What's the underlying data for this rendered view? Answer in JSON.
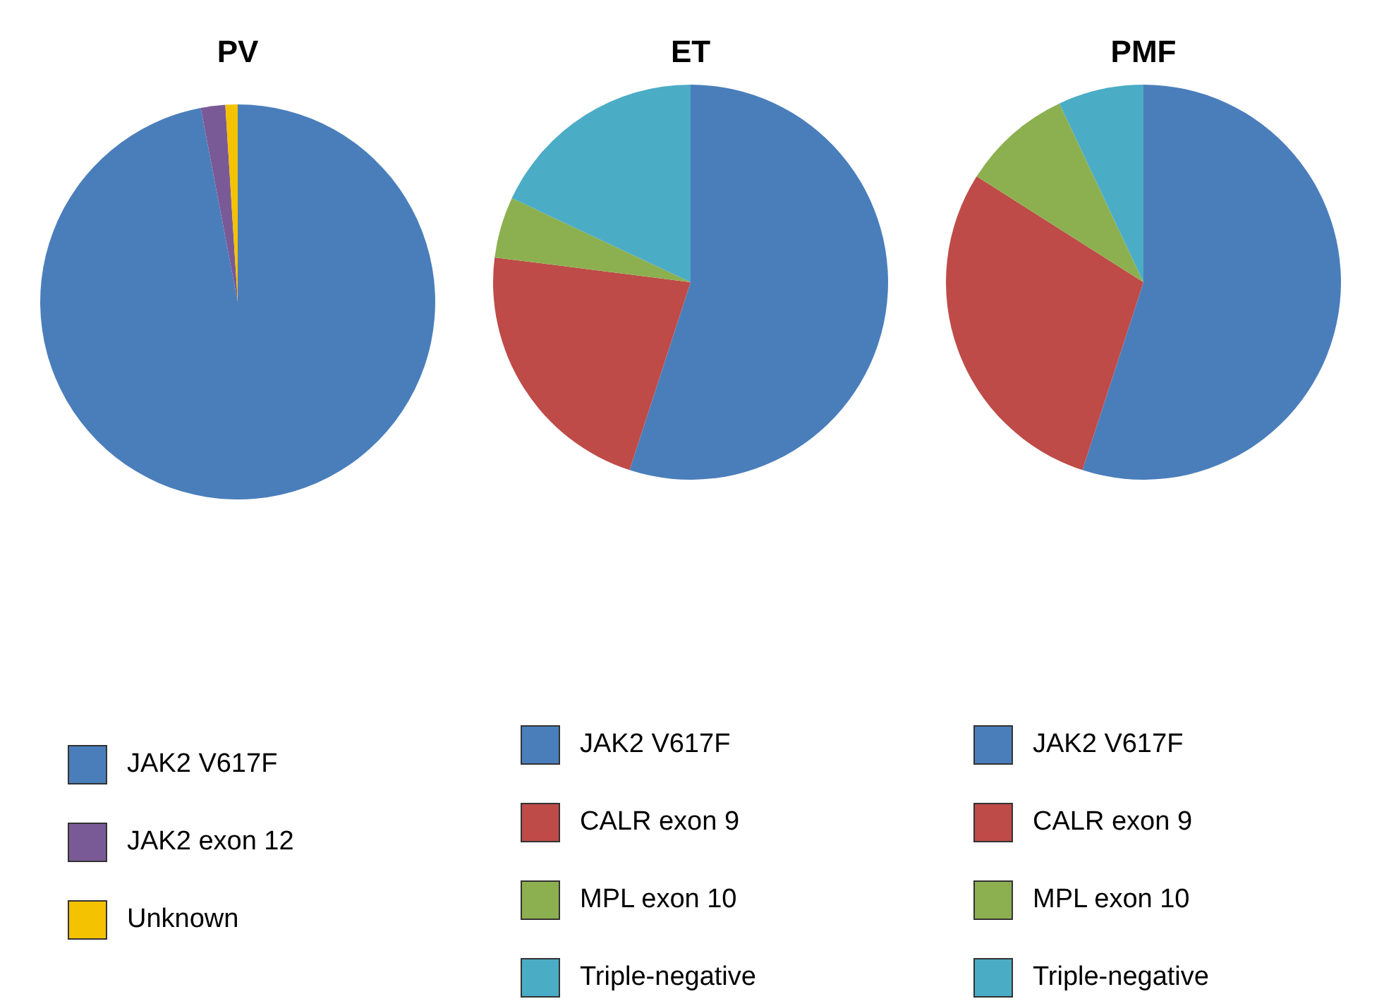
{
  "chart_data": [
    {
      "type": "pie",
      "title": "PV",
      "categories": [
        "JAK2 V617F",
        "JAK2 exon 12",
        "Unknown"
      ],
      "values": [
        97,
        2,
        1
      ],
      "colors": [
        "#4a7ebb",
        "#7a5a96",
        "#f5c200"
      ],
      "legend": "bottom"
    },
    {
      "type": "pie",
      "title": "ET",
      "categories": [
        "JAK2 V617F",
        "CALR exon 9",
        "MPL exon 10",
        "Triple-negative"
      ],
      "values": [
        55,
        22,
        5,
        18
      ],
      "colors": [
        "#4a7ebb",
        "#be4b48",
        "#8cb04f",
        "#4bacc6"
      ],
      "legend": "bottom"
    },
    {
      "type": "pie",
      "title": "PMF",
      "categories": [
        "JAK2 V617F",
        "CALR exon 9",
        "MPL exon 10",
        "Triple-negative"
      ],
      "values": [
        55,
        29,
        9,
        7
      ],
      "colors": [
        "#4a7ebb",
        "#be4b48",
        "#8cb04f",
        "#4bacc6"
      ],
      "legend": "bottom"
    }
  ]
}
